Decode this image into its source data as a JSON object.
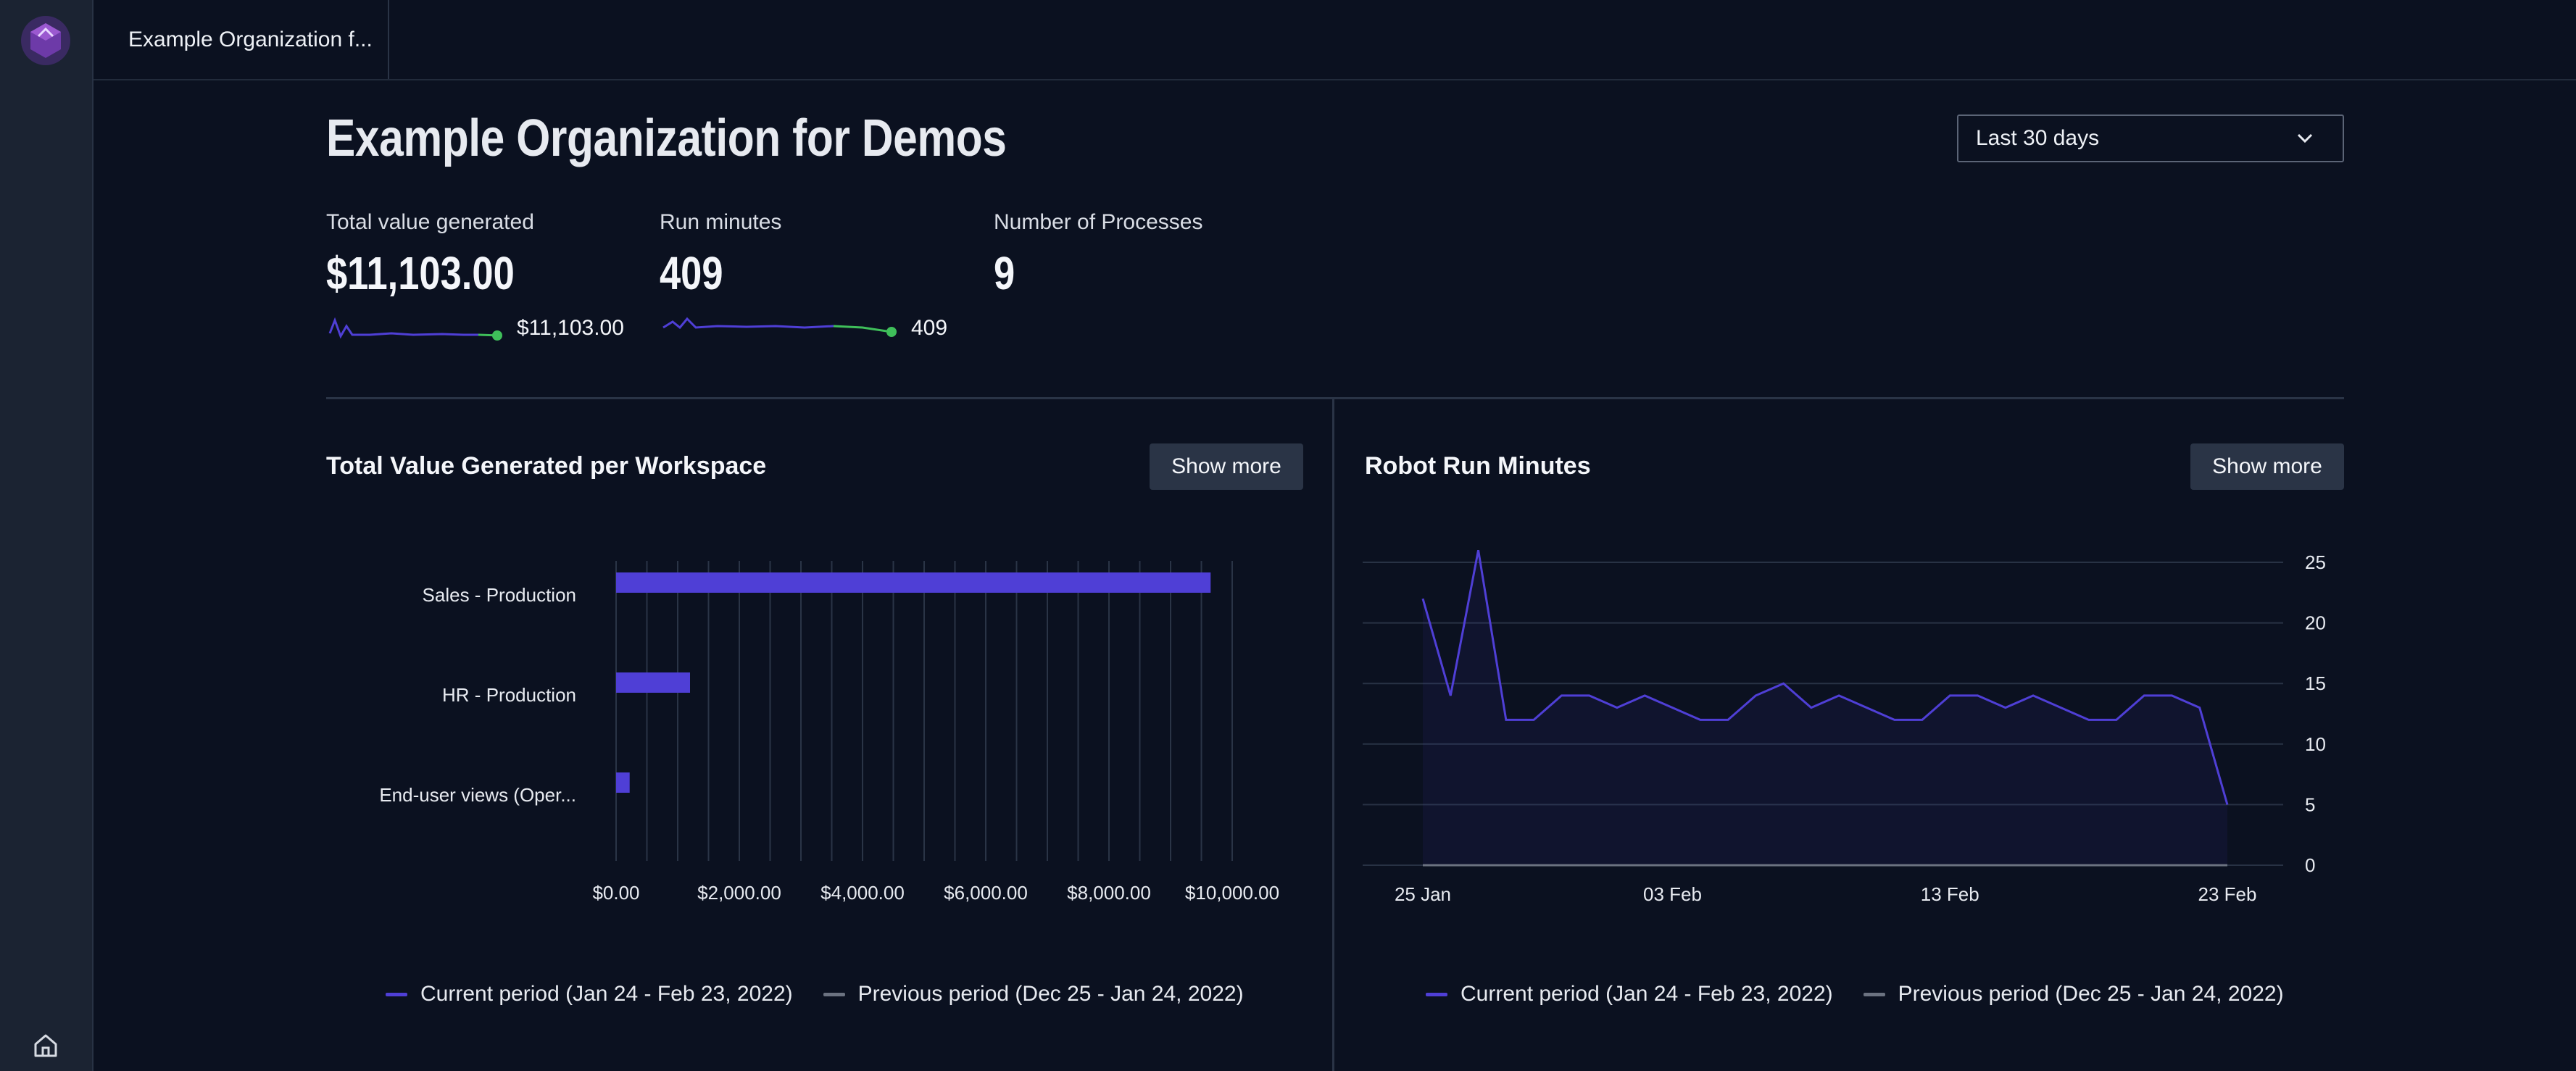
{
  "topbar": {
    "tab_label": "Example Organization f..."
  },
  "page": {
    "title": "Example Organization for Demos",
    "date_range": "Last 30 days"
  },
  "kpis": [
    {
      "label": "Total value generated",
      "value": "$11,103.00",
      "spark_value": "$11,103.00"
    },
    {
      "label": "Run minutes",
      "value": "409",
      "spark_value": "409"
    },
    {
      "label": "Number of Processes",
      "value": "9"
    }
  ],
  "panels": {
    "value": {
      "title": "Total Value Generated per Workspace",
      "show_more": "Show more"
    },
    "runtime": {
      "title": "Robot Run Minutes",
      "show_more": "Show more"
    }
  },
  "legend": {
    "current": "Current period (Jan 24 - Feb 23, 2022)",
    "previous": "Previous period (Dec 25 - Jan 24, 2022)"
  },
  "colors": {
    "current": "#4f3fd6",
    "previous": "#6b7280",
    "spark_recent": "#3fbf5a",
    "accent": "#6d3aa8"
  },
  "icons": {
    "logo": "hexagon-logo-icon",
    "home": "home-icon",
    "chevron": "chevron-down-icon"
  },
  "chart_data": [
    {
      "type": "bar",
      "orientation": "horizontal",
      "title": "Total Value Generated per Workspace",
      "categories": [
        "Sales - Production",
        "HR - Production",
        "End-user views (Oper..."
      ],
      "values": [
        9650,
        1200,
        220
      ],
      "xlim": [
        0,
        10000
      ],
      "xticks": [
        0,
        2000,
        4000,
        6000,
        8000,
        10000
      ],
      "xtick_labels": [
        "$0.00",
        "$2,000.00",
        "$4,000.00",
        "$6,000.00",
        "$8,000.00",
        "$10,000.00"
      ],
      "series": [
        {
          "name": "Current period (Jan 24 - Feb 23, 2022)"
        }
      ]
    },
    {
      "type": "line",
      "title": "Robot Run Minutes",
      "x": [
        "25 Jan",
        "26 Jan",
        "27 Jan",
        "28 Jan",
        "29 Jan",
        "30 Jan",
        "31 Jan",
        "01 Feb",
        "02 Feb",
        "03 Feb",
        "04 Feb",
        "05 Feb",
        "06 Feb",
        "07 Feb",
        "08 Feb",
        "09 Feb",
        "10 Feb",
        "11 Feb",
        "12 Feb",
        "13 Feb",
        "14 Feb",
        "15 Feb",
        "16 Feb",
        "17 Feb",
        "18 Feb",
        "19 Feb",
        "20 Feb",
        "21 Feb",
        "22 Feb",
        "23 Feb"
      ],
      "xtick_labels": [
        "25 Jan",
        "03 Feb",
        "13 Feb",
        "23 Feb"
      ],
      "xtick_index": [
        0,
        9,
        19,
        29
      ],
      "ylim": [
        0,
        25
      ],
      "yticks": [
        0,
        5,
        10,
        15,
        20,
        25
      ],
      "axis_position": "right",
      "series": [
        {
          "name": "Current period (Jan 24 - Feb 23, 2022)",
          "values": [
            22,
            14,
            26,
            12,
            12,
            14,
            14,
            13,
            14,
            13,
            12,
            12,
            14,
            15,
            13,
            14,
            13,
            12,
            12,
            14,
            14,
            13,
            14,
            13,
            12,
            12,
            14,
            14,
            13,
            5
          ]
        },
        {
          "name": "Previous period (Dec 25 - Jan 24, 2022)",
          "values": [
            0,
            0,
            0,
            0,
            0,
            0,
            0,
            0,
            0,
            0,
            0,
            0,
            0,
            0,
            0,
            0,
            0,
            0,
            0,
            0,
            0,
            0,
            0,
            0,
            0,
            0,
            0,
            0,
            0,
            0
          ]
        }
      ]
    }
  ]
}
